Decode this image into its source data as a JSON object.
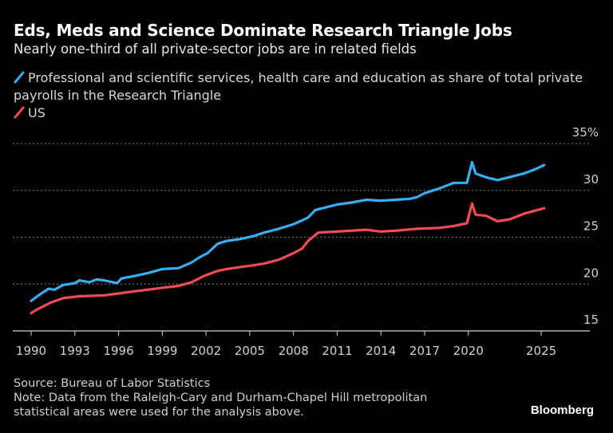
{
  "header": {
    "title": "Eds, Meds and Science Dominate Research Triangle Jobs",
    "subtitle": "Nearly one-third of all private-sector jobs are in related fields"
  },
  "legend": [
    {
      "label": "Professional and scientific services, health care and education as share of total private payrolls in the Research Triangle",
      "color": "#38aef2"
    },
    {
      "label": "US",
      "color": "#f24b57"
    }
  ],
  "footer": {
    "source": "Source: Bureau of Labor Statistics",
    "note_line1": "Note: Data from the Raleigh-Cary and Durham-Chapel Hill metropolitan",
    "note_line2": "statistical areas were used for the analysis above.",
    "brand": "Bloomberg"
  },
  "chart_data": {
    "type": "line",
    "title": "Eds, Meds and Science Dominate Research Triangle Jobs",
    "subtitle": "Nearly one-third of all private-sector jobs are in related fields",
    "xlabel": "",
    "ylabel": "",
    "xlim": [
      1990,
      2025.2
    ],
    "ylim": [
      15,
      35
    ],
    "x_ticks": [
      1990,
      1993,
      1996,
      1999,
      2002,
      2005,
      2008,
      2011,
      2014,
      2017,
      2020,
      2025
    ],
    "x_tick_labels": [
      "1990",
      "1993",
      "1996",
      "1999",
      "2002",
      "2005",
      "2008",
      "2011",
      "2014",
      "2017",
      "2020",
      "2025"
    ],
    "y_ticks": [
      15,
      20,
      25,
      30,
      35
    ],
    "y_tick_labels": [
      "15",
      "20",
      "25",
      "30",
      "35%"
    ],
    "y_axis_side": "right",
    "grid": "horizontal dotted",
    "legend_position": "top-left",
    "series": [
      {
        "name": "Professional and scientific services, health care and education as share of total private payrolls in the Research Triangle",
        "color": "#38aef2",
        "x": [
          1990.0,
          1990.6,
          1991.2,
          1991.6,
          1992.2,
          1993.0,
          1993.3,
          1994.0,
          1994.5,
          1995.0,
          1995.9,
          1996.2,
          1997.2,
          1998.1,
          1999.0,
          2000.1,
          2001.0,
          2001.6,
          2002.1,
          2002.8,
          2003.4,
          2004.3,
          2005.2,
          2006.0,
          2007.0,
          2008.0,
          2008.6,
          2009.0,
          2009.5,
          2010.0,
          2011.0,
          2012.0,
          2013.0,
          2014.0,
          2015.0,
          2016.0,
          2016.5,
          2017.0,
          2018.0,
          2019.0,
          2019.9,
          2020.25,
          2020.5,
          2021.2,
          2022.0,
          2022.8,
          2023.8,
          2024.5,
          2025.2
        ],
        "values": [
          18.2,
          18.9,
          19.5,
          19.4,
          19.9,
          20.1,
          20.4,
          20.2,
          20.5,
          20.4,
          20.1,
          20.6,
          20.9,
          21.2,
          21.6,
          21.7,
          22.3,
          22.9,
          23.3,
          24.3,
          24.6,
          24.8,
          25.1,
          25.5,
          25.9,
          26.4,
          26.8,
          27.1,
          27.9,
          28.1,
          28.5,
          28.7,
          29.0,
          28.9,
          29.0,
          29.1,
          29.3,
          29.7,
          30.2,
          30.8,
          30.8,
          33.0,
          31.8,
          31.4,
          31.1,
          31.4,
          31.8,
          32.2,
          32.7
        ]
      },
      {
        "name": "US",
        "color": "#f24b57",
        "x": [
          1990.0,
          1990.3,
          1991.3,
          1992.2,
          1993.3,
          1995.0,
          1996.0,
          1997.0,
          1998.0,
          1999.0,
          2000.1,
          2001.0,
          2001.9,
          2002.8,
          2003.4,
          2004.3,
          2005.2,
          2006.0,
          2007.0,
          2008.0,
          2008.6,
          2009.0,
          2009.7,
          2011.0,
          2013.0,
          2014.0,
          2015.0,
          2016.5,
          2018.0,
          2019.0,
          2019.9,
          2020.25,
          2020.5,
          2021.2,
          2022.0,
          2022.8,
          2023.8,
          2024.5,
          2025.2
        ],
        "values": [
          16.9,
          17.2,
          18.0,
          18.5,
          18.7,
          18.8,
          19.0,
          19.2,
          19.4,
          19.6,
          19.8,
          20.2,
          20.9,
          21.4,
          21.6,
          21.8,
          22.0,
          22.2,
          22.6,
          23.3,
          23.8,
          24.6,
          25.5,
          25.6,
          25.8,
          25.6,
          25.7,
          25.9,
          26.0,
          26.2,
          26.5,
          28.6,
          27.4,
          27.3,
          26.7,
          26.9,
          27.5,
          27.8,
          28.1
        ]
      }
    ]
  }
}
